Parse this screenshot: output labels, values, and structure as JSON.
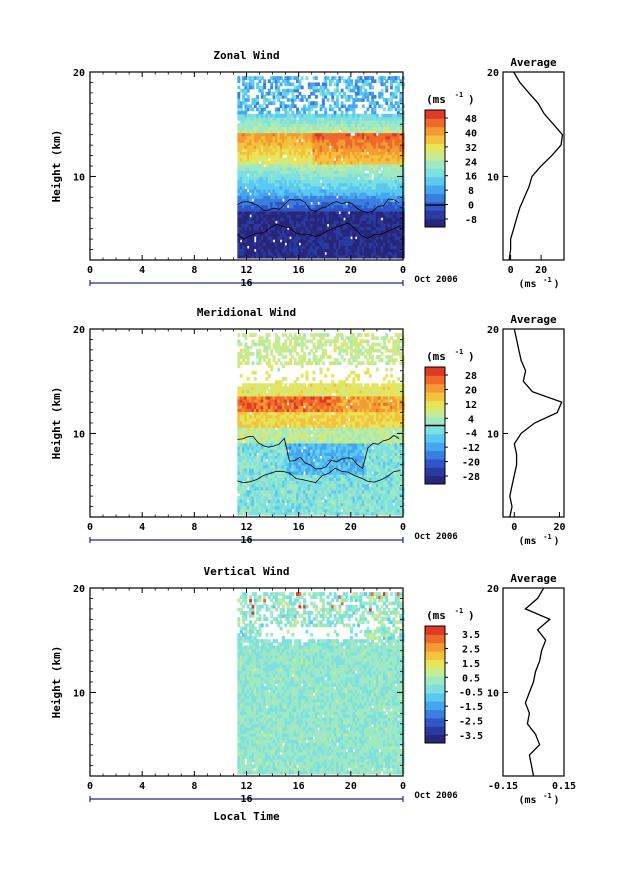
{
  "chart_data": [
    {
      "type": "heatmap",
      "title": "Zonal Wind",
      "ylabel": "Height (km)",
      "unit_label": "(ms",
      "unit_exp": "-1",
      "y_ticks": [
        "20",
        "10"
      ],
      "ylim": [
        2,
        20
      ],
      "x_ticks": [
        "0",
        "4",
        "8",
        "12",
        "16",
        "20",
        "0"
      ],
      "xlim": [
        0,
        24
      ],
      "date_mark": "16",
      "date_label": "Oct 2006",
      "data_start_hour": 11,
      "colorbar_ticks": [
        "48",
        "40",
        "32",
        "24",
        "16",
        "8",
        "0",
        "-8"
      ],
      "colorbar_range": [
        -12,
        52
      ],
      "contour_level": 0,
      "mean_profile": {
        "title": "Average",
        "x_ticks": [
          "0",
          "20"
        ],
        "xlim": [
          -5,
          35
        ],
        "xlabel": "(ms",
        "xlabel_exp": "-1",
        "y_ticks": [
          "20",
          "10"
        ],
        "heights": [
          2,
          3,
          4,
          5,
          6,
          7,
          8,
          9,
          10,
          11,
          12,
          13,
          14,
          15,
          16,
          17,
          18,
          19,
          20
        ],
        "values": [
          -1,
          0,
          0,
          2,
          4,
          6,
          9,
          12,
          14,
          20,
          27,
          33,
          34,
          28,
          22,
          18,
          12,
          6,
          2
        ]
      }
    },
    {
      "type": "heatmap",
      "title": "Meridional Wind",
      "ylabel": "Height (km)",
      "unit_label": "(ms",
      "unit_exp": "-1",
      "y_ticks": [
        "20",
        "10"
      ],
      "ylim": [
        2,
        20
      ],
      "x_ticks": [
        "0",
        "4",
        "8",
        "12",
        "16",
        "20",
        "0"
      ],
      "xlim": [
        0,
        24
      ],
      "date_mark": "16",
      "date_label": "Oct 2006",
      "data_start_hour": 11,
      "colorbar_ticks": [
        "28",
        "20",
        "12",
        "4",
        "-4",
        "-12",
        "-20",
        "-28"
      ],
      "colorbar_range": [
        -32,
        32
      ],
      "contour_level": 0,
      "mean_profile": {
        "title": "Average",
        "x_ticks": [
          "0",
          "20"
        ],
        "xlim": [
          -5,
          22
        ],
        "xlabel": "(ms",
        "xlabel_exp": "-1",
        "y_ticks": [
          "20",
          "10"
        ],
        "heights": [
          2,
          3,
          4,
          5,
          6,
          7,
          8,
          9,
          10,
          11,
          12,
          13,
          14,
          15,
          16,
          17,
          18,
          19,
          20
        ],
        "values": [
          -2,
          -1,
          -2,
          -1,
          0,
          1,
          1,
          0,
          3,
          9,
          19,
          21,
          8,
          4,
          5,
          3,
          2,
          1,
          0
        ]
      }
    },
    {
      "type": "heatmap",
      "title": "Vertical Wind",
      "ylabel": "Height (km)",
      "xlabel": "Local Time",
      "unit_label": "(ms",
      "unit_exp": "-1",
      "y_ticks": [
        "20",
        "10"
      ],
      "ylim": [
        2,
        20
      ],
      "x_ticks": [
        "0",
        "4",
        "8",
        "12",
        "16",
        "20",
        "0"
      ],
      "xlim": [
        0,
        24
      ],
      "date_mark": "16",
      "date_label": "Oct 2006",
      "data_start_hour": 11,
      "colorbar_ticks": [
        "3.5",
        "2.5",
        "1.5",
        "0.5",
        "-0.5",
        "-1.5",
        "-2.5",
        "-3.5"
      ],
      "colorbar_range": [
        -4,
        4
      ],
      "mean_profile": {
        "title": "Average",
        "x_ticks": [
          "-0.15",
          "0.15"
        ],
        "xlim": [
          -0.15,
          0.15
        ],
        "xlabel": "(ms",
        "xlabel_exp": "-1",
        "y_ticks": [
          "20",
          "10"
        ],
        "heights": [
          2,
          3,
          4,
          5,
          6,
          7,
          8,
          9,
          10,
          11,
          12,
          13,
          14,
          15,
          16,
          17,
          18,
          19,
          20
        ],
        "values": [
          0,
          -0.01,
          -0.02,
          0.03,
          0.01,
          -0.03,
          -0.02,
          -0.04,
          -0.02,
          0.0,
          0.01,
          0.03,
          0.04,
          0.06,
          0.02,
          0.08,
          -0.04,
          0.02,
          0.05
        ]
      }
    }
  ],
  "colors": {
    "colormap": [
      "#27267a",
      "#2b3aa0",
      "#2f55c6",
      "#3a7fe0",
      "#45a6f0",
      "#5bc8f2",
      "#7cdfe0",
      "#9ee9c4",
      "#c6eb92",
      "#e6e55a",
      "#f5c23e",
      "#f39a32",
      "#ee6a2a",
      "#e03a26"
    ],
    "axis": "#000000",
    "gap": "#ffffff"
  }
}
